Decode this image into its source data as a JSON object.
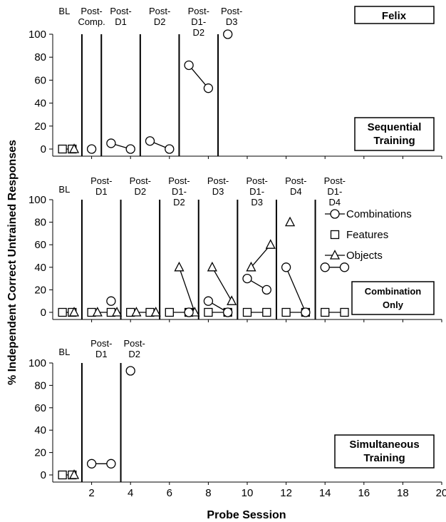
{
  "chart_data": {
    "type": "scatter",
    "subject": "Felix",
    "xlabel": "Probe Session",
    "ylabel": "% Independent Correct Untrained Responses",
    "xlim": [
      0,
      20
    ],
    "xticks": [
      "2",
      "4",
      "6",
      "8",
      "10",
      "12",
      "14",
      "16",
      "18",
      "20"
    ],
    "legend": {
      "position": "right",
      "entries": [
        {
          "key": "combinations",
          "label": "Combinations",
          "marker": "circle"
        },
        {
          "key": "features",
          "label": "Features",
          "marker": "square"
        },
        {
          "key": "objects",
          "label": "Objects",
          "marker": "triangle"
        }
      ]
    },
    "panels": [
      {
        "id": "sequential",
        "condition_label": [
          "Sequential",
          "Training"
        ],
        "ylim": [
          0,
          100
        ],
        "yticks": [
          "0",
          "20",
          "40",
          "60",
          "80",
          "100"
        ],
        "phase_lines": [
          1.5,
          2.5,
          4.5,
          6.5,
          8.5
        ],
        "phases": [
          {
            "label": [
              "BL"
            ],
            "x": 0.6,
            "row": 0
          },
          {
            "label": [
              "Post-",
              "Comp."
            ],
            "x": 2.0,
            "row": 0
          },
          {
            "label": [
              "Post-",
              "D1"
            ],
            "x": 3.5,
            "row": 0
          },
          {
            "label": [
              "Post-",
              "D2"
            ],
            "x": 5.5,
            "row": 0
          },
          {
            "label": [
              "Post-",
              "D1-",
              "D2"
            ],
            "x": 7.5,
            "row": 0
          },
          {
            "label": [
              "Post-",
              "D3"
            ],
            "x": 9.2,
            "row": 0
          }
        ],
        "series": {
          "combinations": [
            [
              [
                2,
                0
              ]
            ],
            [
              [
                3,
                5
              ],
              [
                4,
                0
              ]
            ],
            [
              [
                5,
                7
              ],
              [
                6,
                0
              ]
            ],
            [
              [
                7,
                73
              ],
              [
                8,
                53
              ]
            ],
            [
              [
                9,
                100
              ]
            ]
          ],
          "features": [
            [
              [
                0.5,
                0
              ],
              [
                1,
                0
              ]
            ]
          ],
          "objects": [
            [
              [
                1.1,
                0
              ]
            ]
          ]
        }
      },
      {
        "id": "combination-only",
        "condition_label": [
          "Combination",
          "Only"
        ],
        "ylim": [
          0,
          100
        ],
        "yticks": [
          "0",
          "20",
          "40",
          "60",
          "80",
          "100"
        ],
        "phase_lines": [
          1.5,
          3.5,
          5.5,
          7.5,
          9.5,
          11.5,
          13.5
        ],
        "phases": [
          {
            "label": [
              "BL"
            ],
            "x": 0.6,
            "row": 1
          },
          {
            "label": [
              "Post-",
              "D1"
            ],
            "x": 2.5,
            "row": 0
          },
          {
            "label": [
              "Post-",
              "D2"
            ],
            "x": 4.5,
            "row": 0
          },
          {
            "label": [
              "Post-",
              "D1-",
              "D2"
            ],
            "x": 6.5,
            "row": 0
          },
          {
            "label": [
              "Post-",
              "D3"
            ],
            "x": 8.5,
            "row": 0
          },
          {
            "label": [
              "Post-",
              "D1-",
              "D3"
            ],
            "x": 10.5,
            "row": 0
          },
          {
            "label": [
              "Post-",
              "D4"
            ],
            "x": 12.5,
            "row": 0
          },
          {
            "label": [
              "Post-",
              "D1-",
              "D4"
            ],
            "x": 14.5,
            "row": 0
          }
        ],
        "series": {
          "combinations": [
            [
              [
                3,
                10
              ]
            ],
            [
              [
                7,
                0
              ]
            ],
            [
              [
                8,
                10
              ],
              [
                9,
                0
              ]
            ],
            [
              [
                10,
                30
              ],
              [
                11,
                20
              ]
            ],
            [
              [
                12,
                40
              ],
              [
                13,
                0
              ]
            ],
            [
              [
                14,
                40
              ],
              [
                15,
                40
              ]
            ]
          ],
          "features": [
            [
              [
                0.5,
                0
              ],
              [
                1,
                0
              ]
            ],
            [
              [
                2,
                0
              ],
              [
                3,
                0
              ]
            ],
            [
              [
                4,
                0
              ],
              [
                5,
                0
              ]
            ],
            [
              [
                6,
                0
              ],
              [
                7,
                0
              ]
            ],
            [
              [
                8,
                0
              ],
              [
                9,
                0
              ]
            ],
            [
              [
                10,
                0
              ],
              [
                11,
                0
              ]
            ],
            [
              [
                12,
                0
              ],
              [
                13,
                0
              ]
            ],
            [
              [
                14,
                0
              ],
              [
                15,
                0
              ]
            ]
          ],
          "objects": [
            [
              [
                1.1,
                0
              ]
            ],
            [
              [
                2.3,
                0
              ]
            ],
            [
              [
                3.3,
                0
              ]
            ],
            [
              [
                4.3,
                0
              ]
            ],
            [
              [
                5.3,
                0
              ]
            ],
            [
              [
                6.5,
                40
              ],
              [
                7.3,
                0
              ]
            ],
            [
              [
                8.2,
                40
              ],
              [
                9.2,
                10
              ]
            ],
            [
              [
                10.2,
                40
              ],
              [
                11.2,
                60
              ]
            ],
            [
              [
                12.2,
                80
              ]
            ]
          ]
        }
      },
      {
        "id": "simultaneous",
        "condition_label": [
          "Simultaneous",
          "Training"
        ],
        "ylim": [
          0,
          100
        ],
        "yticks": [
          "0",
          "20",
          "40",
          "60",
          "80",
          "100"
        ],
        "phase_lines": [
          1.5,
          3.5
        ],
        "phases": [
          {
            "label": [
              "BL"
            ],
            "x": 0.6,
            "row": 1
          },
          {
            "label": [
              "Post-",
              "D1"
            ],
            "x": 2.5,
            "row": 0
          },
          {
            "label": [
              "Post-",
              "D2"
            ],
            "x": 4.2,
            "row": 0
          }
        ],
        "series": {
          "combinations": [
            [
              [
                2,
                10
              ],
              [
                3,
                10
              ]
            ],
            [
              [
                4,
                93
              ]
            ]
          ],
          "features": [
            [
              [
                0.5,
                0
              ],
              [
                1,
                0
              ]
            ]
          ],
          "objects": [
            [
              [
                1.1,
                0
              ]
            ]
          ]
        }
      }
    ]
  }
}
